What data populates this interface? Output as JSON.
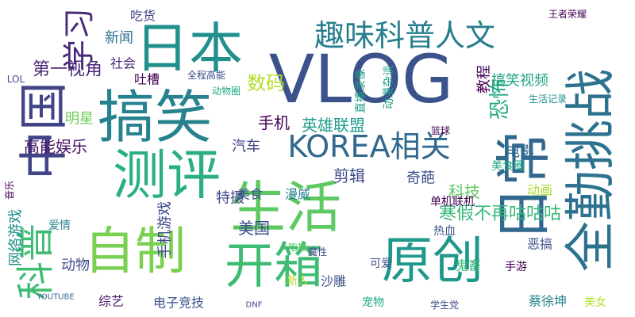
{
  "chart_data": {
    "type": "wordcloud",
    "words": [
      {
        "text": "VLOG",
        "weight": 84,
        "color": "#3b528b",
        "vertical": false
      },
      {
        "text": "日本",
        "weight": 68,
        "color": "#21908d",
        "vertical": false
      },
      {
        "text": "搞笑",
        "weight": 72,
        "color": "#26828e",
        "vertical": false
      },
      {
        "text": "测评",
        "weight": 68,
        "color": "#2ab07f",
        "vertical": false
      },
      {
        "text": "生活",
        "weight": 70,
        "color": "#5ec962",
        "vertical": false
      },
      {
        "text": "自制",
        "weight": 64,
        "color": "#7ad151",
        "vertical": false
      },
      {
        "text": "开箱",
        "weight": 62,
        "color": "#3fbc73",
        "vertical": false
      },
      {
        "text": "原创",
        "weight": 64,
        "color": "#1f988b",
        "vertical": false
      },
      {
        "text": "中国",
        "weight": 62,
        "color": "#414487",
        "vertical": true
      },
      {
        "text": "日常",
        "weight": 70,
        "color": "#31688e",
        "vertical": true
      },
      {
        "text": "全勤挑战",
        "weight": 64,
        "color": "#2c728e",
        "vertical": true
      },
      {
        "text": "趣味科普人文",
        "weight": 38,
        "color": "#277f8e",
        "vertical": false
      },
      {
        "text": "科普",
        "weight": 48,
        "color": "#3fbc73",
        "vertical": true
      },
      {
        "text": "学习",
        "weight": 40,
        "color": "#482878",
        "vertical": true
      },
      {
        "text": "KOREA相关",
        "weight": 38,
        "color": "#31688e",
        "vertical": false
      },
      {
        "text": "寒假不再咕咕咕",
        "weight": 22,
        "color": "#35b779",
        "vertical": false
      },
      {
        "text": "数码",
        "weight": 24,
        "color": "#b5de2b",
        "vertical": false
      },
      {
        "text": "英雄联盟",
        "weight": 20,
        "color": "#1f9e89",
        "vertical": false
      },
      {
        "text": "手机",
        "weight": 20,
        "color": "#440154",
        "vertical": false
      },
      {
        "text": "恐怖",
        "weight": 26,
        "color": "#22a884",
        "vertical": true
      },
      {
        "text": "科技",
        "weight": 20,
        "color": "#5ec962",
        "vertical": false
      },
      {
        "text": "剪辑",
        "weight": 20,
        "color": "#3e4a89",
        "vertical": false
      },
      {
        "text": "奇葩",
        "weight": 18,
        "color": "#3b528b",
        "vertical": false
      },
      {
        "text": "美国",
        "weight": 20,
        "color": "#3e4a89",
        "vertical": false
      },
      {
        "text": "第一视角",
        "weight": 22,
        "color": "#482878",
        "vertical": false
      },
      {
        "text": "高能娱乐",
        "weight": 20,
        "color": "#471164",
        "vertical": false
      },
      {
        "text": "明星",
        "weight": 18,
        "color": "#6ece58",
        "vertical": false
      },
      {
        "text": "新闻",
        "weight": 18,
        "color": "#2c728e",
        "vertical": false
      },
      {
        "text": "社会",
        "weight": 16,
        "color": "#482878",
        "vertical": false
      },
      {
        "text": "汽车",
        "weight": 18,
        "color": "#414487",
        "vertical": false
      },
      {
        "text": "美食",
        "weight": 16,
        "color": "#3b528b",
        "vertical": false
      },
      {
        "text": "特摄",
        "weight": 18,
        "color": "#3e4a89",
        "vertical": false
      },
      {
        "text": "漫威",
        "weight": 16,
        "color": "#26828e",
        "vertical": false
      },
      {
        "text": "搞笑视频",
        "weight": 18,
        "color": "#22a884",
        "vertical": false
      },
      {
        "text": "教程",
        "weight": 18,
        "color": "#440154",
        "vertical": true
      },
      {
        "text": "电影",
        "weight": 18,
        "color": "#31688e",
        "vertical": false
      },
      {
        "text": "动画",
        "weight": 16,
        "color": "#addc30",
        "vertical": false
      },
      {
        "text": "网络游戏",
        "weight": 18,
        "color": "#21908d",
        "vertical": true
      },
      {
        "text": "动物",
        "weight": 18,
        "color": "#3e4a89",
        "vertical": false
      },
      {
        "text": "手机游戏",
        "weight": 18,
        "color": "#3e4a89",
        "vertical": true
      },
      {
        "text": "吐槽",
        "weight": 16,
        "color": "#440154",
        "vertical": false
      },
      {
        "text": "吃货",
        "weight": 16,
        "color": "#414487",
        "vertical": false
      },
      {
        "text": "综艺",
        "weight": 16,
        "color": "#481a6c",
        "vertical": false
      },
      {
        "text": "电子竞技",
        "weight": 16,
        "color": "#3b528b",
        "vertical": false
      },
      {
        "text": "蔡徐坤",
        "weight": 16,
        "color": "#26828e",
        "vertical": false
      },
      {
        "text": "新人",
        "weight": 14,
        "color": "#b5de2b",
        "vertical": false
      },
      {
        "text": "可爱",
        "weight": 14,
        "color": "#3e4a89",
        "vertical": false
      },
      {
        "text": "热血",
        "weight": 14,
        "color": "#3b528b",
        "vertical": false
      },
      {
        "text": "沙雕",
        "weight": 16,
        "color": "#3b528b",
        "vertical": false
      },
      {
        "text": "鬼畜",
        "weight": 16,
        "color": "#35b779",
        "vertical": false
      },
      {
        "text": "手游",
        "weight": 14,
        "color": "#440154",
        "vertical": false
      },
      {
        "text": "恶搞",
        "weight": 16,
        "color": "#3b528b",
        "vertical": false
      },
      {
        "text": "宠物",
        "weight": 14,
        "color": "#22a884",
        "vertical": false
      },
      {
        "text": "美女",
        "weight": 14,
        "color": "#b5de2b",
        "vertical": false
      },
      {
        "text": "王者荣耀",
        "weight": 12,
        "color": "#440154",
        "vertical": false
      },
      {
        "text": "LOL",
        "weight": 12,
        "color": "#3e4a89",
        "vertical": false
      },
      {
        "text": "YOUTUBE",
        "weight": 10,
        "color": "#31688e",
        "vertical": false
      },
      {
        "text": "DNF",
        "weight": 10,
        "color": "#3e4a89",
        "vertical": false
      },
      {
        "text": "学生党",
        "weight": 12,
        "color": "#3e4a89",
        "vertical": false
      },
      {
        "text": "爱情",
        "weight": 14,
        "color": "#26828e",
        "vertical": false
      },
      {
        "text": "音乐",
        "weight": 12,
        "color": "#440154",
        "vertical": true
      },
      {
        "text": "单机联机",
        "weight": 14,
        "color": "#440154",
        "vertical": false
      },
      {
        "text": "动漫杂谈",
        "weight": 14,
        "color": "#1f9e89",
        "vertical": true
      },
      {
        "text": "直播录像",
        "weight": 14,
        "color": "#1f9e89",
        "vertical": true
      },
      {
        "text": "生活记录",
        "weight": 12,
        "color": "#21908d",
        "vertical": false
      },
      {
        "text": "篮球",
        "weight": 12,
        "color": "#440154",
        "vertical": false
      },
      {
        "text": "全程高能",
        "weight": 12,
        "color": "#3e4a89",
        "vertical": false
      },
      {
        "text": "动物圈",
        "weight": 12,
        "color": "#22a884",
        "vertical": false
      },
      {
        "text": "魔性",
        "weight": 12,
        "color": "#3e4a89",
        "vertical": false
      },
      {
        "text": "吃播",
        "weight": 12,
        "color": "#5ec962",
        "vertical": false
      },
      {
        "text": "美食圈",
        "weight": 14,
        "color": "#22a884",
        "vertical": false
      }
    ]
  }
}
